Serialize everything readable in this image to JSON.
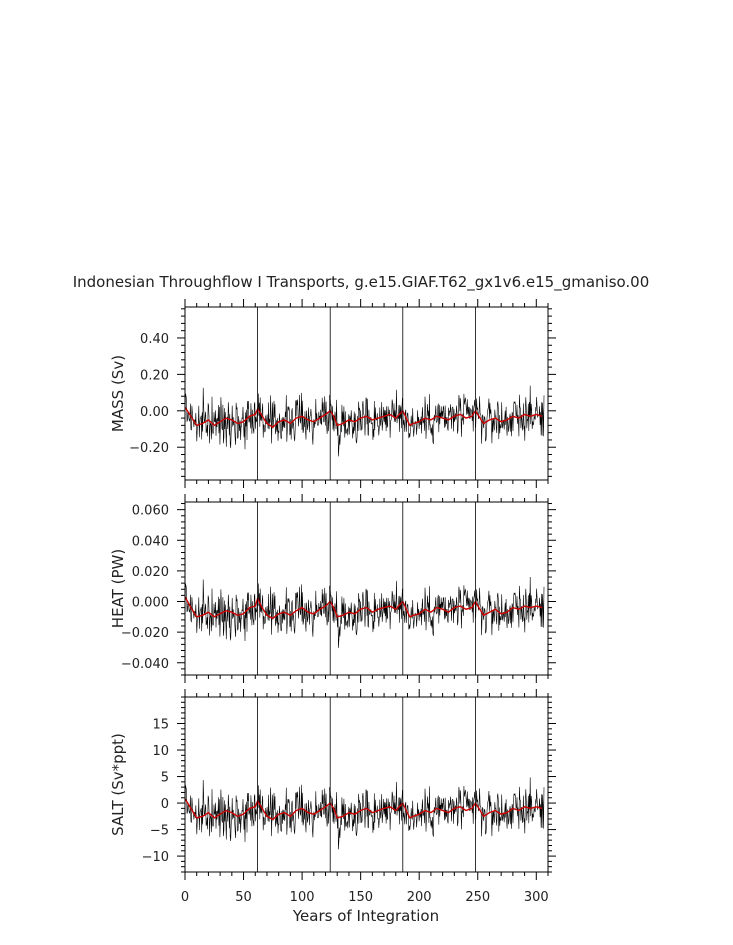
{
  "title": "Indonesian Throughflow I Transports, g.e15.GIAF.T62_gx1v6.e15_gmaniso.00",
  "xlabel": "Years of Integration",
  "colors": {
    "raw": "#000000",
    "smooth": "#cc0000",
    "axis": "#000000"
  },
  "chart_data": [
    {
      "type": "line",
      "ylabel": "MASS (Sv)",
      "xlim": [
        0,
        310
      ],
      "ylim": [
        -0.38,
        0.57
      ],
      "yticks": [
        -0.2,
        0.0,
        0.2,
        0.4
      ],
      "yticklabels": [
        "−0.20",
        "0.00",
        "0.20",
        "0.40"
      ],
      "xticks": [
        0,
        50,
        100,
        150,
        200,
        250,
        300
      ],
      "vlines": [
        62,
        124,
        186,
        248
      ],
      "series": [
        {
          "values_x": [
            0,
            5,
            10,
            15,
            20,
            25,
            30,
            35,
            40,
            45,
            50,
            55,
            60,
            62,
            65,
            70,
            75,
            80,
            85,
            90,
            95,
            100,
            105,
            110,
            115,
            120,
            124,
            127,
            130,
            135,
            140,
            145,
            150,
            155,
            160,
            165,
            170,
            175,
            180,
            186,
            189,
            192,
            195,
            200,
            205,
            210,
            215,
            220,
            225,
            230,
            235,
            240,
            245,
            248,
            251,
            255,
            260,
            265,
            270,
            275,
            280,
            285,
            290,
            295,
            300,
            305
          ],
          "values_y": [
            0.02,
            -0.03,
            -0.08,
            -0.07,
            -0.05,
            -0.08,
            -0.06,
            -0.04,
            -0.05,
            -0.07,
            -0.06,
            -0.03,
            -0.02,
            0.01,
            -0.02,
            -0.07,
            -0.09,
            -0.06,
            -0.05,
            -0.07,
            -0.04,
            -0.03,
            -0.05,
            -0.06,
            -0.04,
            -0.02,
            0.0,
            -0.03,
            -0.08,
            -0.07,
            -0.05,
            -0.06,
            -0.04,
            -0.03,
            -0.05,
            -0.04,
            -0.03,
            -0.02,
            -0.04,
            0.0,
            -0.04,
            -0.08,
            -0.07,
            -0.06,
            -0.04,
            -0.05,
            -0.03,
            -0.04,
            -0.05,
            -0.03,
            -0.02,
            -0.04,
            -0.03,
            0.0,
            -0.03,
            -0.07,
            -0.05,
            -0.04,
            -0.06,
            -0.05,
            -0.03,
            -0.04,
            -0.02,
            -0.03,
            -0.02,
            -0.03
          ]
        }
      ]
    },
    {
      "type": "line",
      "ylabel": "HEAT (PW)",
      "xlim": [
        0,
        310
      ],
      "ylim": [
        -0.048,
        0.065
      ],
      "yticks": [
        -0.04,
        -0.02,
        0.0,
        0.02,
        0.04,
        0.06
      ],
      "yticklabels": [
        "−0.040",
        "−0.020",
        "0.000",
        "0.020",
        "0.040",
        "0.060"
      ],
      "xticks": [
        0,
        50,
        100,
        150,
        200,
        250,
        300
      ],
      "vlines": [
        62,
        124,
        186,
        248
      ],
      "series": [
        {
          "values_x": [
            0,
            5,
            10,
            15,
            20,
            25,
            30,
            35,
            40,
            45,
            50,
            55,
            60,
            62,
            65,
            70,
            75,
            80,
            85,
            90,
            95,
            100,
            105,
            110,
            115,
            120,
            124,
            127,
            130,
            135,
            140,
            145,
            150,
            155,
            160,
            165,
            170,
            175,
            180,
            186,
            189,
            192,
            195,
            200,
            205,
            210,
            215,
            220,
            225,
            230,
            235,
            240,
            245,
            248,
            251,
            255,
            260,
            265,
            270,
            275,
            280,
            285,
            290,
            295,
            300,
            305
          ],
          "values_y": [
            0.003,
            -0.004,
            -0.01,
            -0.009,
            -0.007,
            -0.01,
            -0.008,
            -0.006,
            -0.007,
            -0.009,
            -0.008,
            -0.004,
            -0.003,
            0.002,
            -0.003,
            -0.009,
            -0.011,
            -0.008,
            -0.007,
            -0.009,
            -0.006,
            -0.004,
            -0.007,
            -0.008,
            -0.005,
            -0.003,
            0.0,
            -0.004,
            -0.01,
            -0.009,
            -0.007,
            -0.008,
            -0.005,
            -0.004,
            -0.007,
            -0.005,
            -0.004,
            -0.003,
            -0.005,
            0.0,
            -0.005,
            -0.01,
            -0.009,
            -0.008,
            -0.005,
            -0.007,
            -0.004,
            -0.005,
            -0.007,
            -0.004,
            -0.003,
            -0.005,
            -0.004,
            0.0,
            -0.004,
            -0.009,
            -0.007,
            -0.005,
            -0.008,
            -0.007,
            -0.004,
            -0.005,
            -0.003,
            -0.004,
            -0.003,
            -0.004
          ]
        }
      ]
    },
    {
      "type": "line",
      "ylabel": "SALT (Sv*ppt)",
      "xlim": [
        0,
        310
      ],
      "ylim": [
        -13,
        20
      ],
      "yticks": [
        -10,
        -5,
        0,
        5,
        10,
        15
      ],
      "yticklabels": [
        "−10",
        "−5",
        "0",
        "5",
        "10",
        "15"
      ],
      "xticks": [
        0,
        50,
        100,
        150,
        200,
        250,
        300
      ],
      "xticklabels": [
        "0",
        "50",
        "100",
        "150",
        "200",
        "250",
        "300"
      ],
      "vlines": [
        62,
        124,
        186,
        248
      ],
      "series": [
        {
          "values_x": [
            0,
            5,
            10,
            15,
            20,
            25,
            30,
            35,
            40,
            45,
            50,
            55,
            60,
            62,
            65,
            70,
            75,
            80,
            85,
            90,
            95,
            100,
            105,
            110,
            115,
            120,
            124,
            127,
            130,
            135,
            140,
            145,
            150,
            155,
            160,
            165,
            170,
            175,
            180,
            186,
            189,
            192,
            195,
            200,
            205,
            210,
            215,
            220,
            225,
            230,
            235,
            240,
            245,
            248,
            251,
            255,
            260,
            265,
            270,
            275,
            280,
            285,
            290,
            295,
            300,
            305
          ],
          "values_y": [
            0.8,
            -1.0,
            -2.8,
            -2.5,
            -1.8,
            -2.8,
            -2.1,
            -1.4,
            -1.8,
            -2.5,
            -2.1,
            -1.0,
            -0.7,
            0.4,
            -0.7,
            -2.5,
            -3.1,
            -2.1,
            -1.8,
            -2.5,
            -1.4,
            -1.0,
            -1.8,
            -2.1,
            -1.4,
            -0.7,
            0.0,
            -1.0,
            -2.8,
            -2.5,
            -1.8,
            -2.1,
            -1.4,
            -1.0,
            -1.8,
            -1.4,
            -1.0,
            -0.7,
            -1.4,
            0.0,
            -1.4,
            -2.8,
            -2.5,
            -2.1,
            -1.4,
            -1.8,
            -1.0,
            -1.4,
            -1.8,
            -1.0,
            -0.7,
            -1.4,
            -1.0,
            0.0,
            -1.0,
            -2.5,
            -1.8,
            -1.4,
            -2.1,
            -1.8,
            -1.0,
            -1.4,
            -0.7,
            -1.0,
            -0.7,
            -1.0
          ]
        }
      ]
    }
  ]
}
